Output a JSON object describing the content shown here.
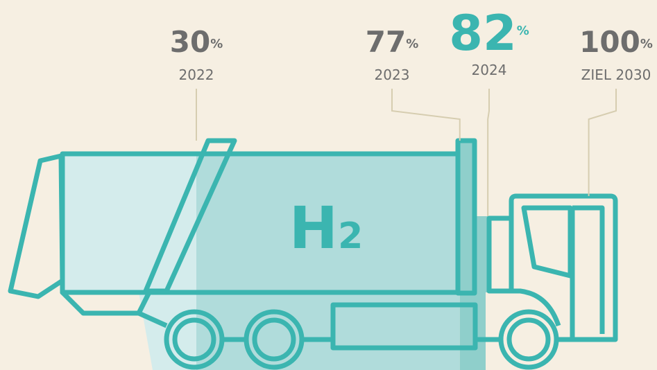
{
  "unit": "%",
  "milestones": [
    {
      "value": 30,
      "label": "2022",
      "color": "#d4ecec",
      "highlight": false
    },
    {
      "value": 77,
      "label": "2023",
      "color": "#b0dcdb",
      "highlight": false
    },
    {
      "value": 82,
      "label": "2024",
      "color": "#8fcfcb",
      "highlight": true
    },
    {
      "value": 100,
      "label": "ZIEL 2030",
      "color": "#f6efe2",
      "highlight": false
    }
  ],
  "h2": {
    "symbol": "H",
    "subscript": "2"
  }
}
